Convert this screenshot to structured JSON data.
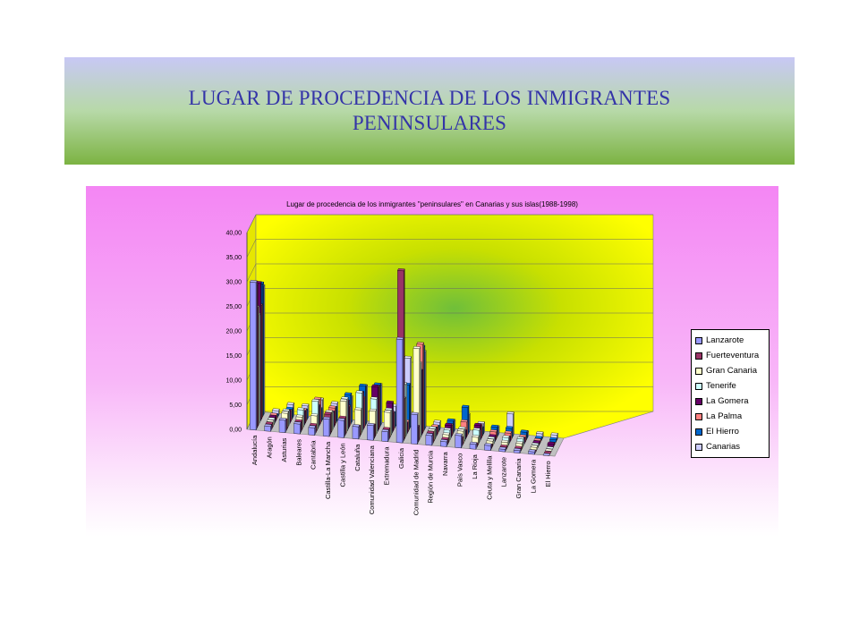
{
  "slide": {
    "title_line1": "LUGAR DE PROCEDENCIA DE LOS INMIGRANTES",
    "title_line2": "PENINSULARES"
  },
  "colors": {
    "series": [
      "#9999ff",
      "#993366",
      "#ffffcc",
      "#ccffff",
      "#660066",
      "#ff8080",
      "#0066cc",
      "#ccccff"
    ],
    "back_wall": "#ffff00",
    "back_wall_center": "#6fbf3a"
  },
  "chart_data": {
    "type": "bar",
    "variant": "3d-clustered",
    "title": "Lugar de procedencia de los inmigrantes \"peninsulares\" en Canarias y sus islas(1988-1998)",
    "y_ticks": [
      "0,00",
      "5,00",
      "10,00",
      "15,00",
      "20,00",
      "25,00",
      "30,00",
      "35,00",
      "40,00"
    ],
    "ylim": [
      0,
      40
    ],
    "legend_position": "right",
    "grid": true,
    "categories": [
      "Andalucía",
      "Aragón",
      "Asturias",
      "Baleares",
      "Cantabria",
      "Castilla-La Mancha",
      "Castilla y León",
      "Cataluña",
      "Comunidad Valenciana",
      "Extremadura",
      "Galicia",
      "Comunidad de Madrid",
      "Región de Murcia",
      "Navarra",
      "País Vasco",
      "La Rioja",
      "Ceuta y Melilla",
      "Lanzarote",
      "Gran Canaria",
      "La Gomera",
      "El Hierro"
    ],
    "series": [
      {
        "name": "Lanzarote",
        "values": [
          30.0,
          1.0,
          2.5,
          2.0,
          1.5,
          3.5,
          3.5,
          2.5,
          3.0,
          2.0,
          21.0,
          6.0,
          2.0,
          1.0,
          2.5,
          1.0,
          1.0,
          0.5,
          0.5,
          0.5,
          0.0
        ]
      },
      {
        "name": "Fuerteventura",
        "values": [
          29.0,
          1.0,
          2.0,
          2.0,
          1.5,
          4.0,
          3.5,
          2.0,
          2.5,
          2.0,
          34.5,
          3.0,
          2.0,
          1.0,
          1.5,
          0.5,
          0.5,
          0.5,
          0.5,
          0.0,
          0.0
        ]
      },
      {
        "name": "Gran Canaria",
        "values": [
          24.0,
          1.0,
          3.0,
          2.5,
          3.0,
          4.0,
          6.5,
          5.0,
          5.0,
          5.0,
          8.0,
          18.5,
          2.0,
          1.5,
          2.5,
          1.5,
          1.0,
          1.0,
          1.0,
          0.5,
          0.0
        ]
      },
      {
        "name": "Tenerife",
        "values": [
          22.0,
          1.0,
          3.0,
          3.5,
          5.5,
          3.5,
          6.5,
          8.0,
          7.0,
          5.0,
          10.5,
          15.0,
          2.0,
          2.0,
          2.5,
          2.5,
          1.0,
          1.5,
          1.5,
          0.5,
          0.0
        ]
      },
      {
        "name": "La Gomera",
        "values": [
          28.0,
          1.0,
          2.5,
          2.5,
          4.0,
          3.0,
          5.5,
          7.5,
          9.0,
          6.0,
          2.0,
          13.0,
          1.5,
          2.5,
          1.5,
          3.0,
          1.0,
          1.0,
          1.0,
          0.5,
          0.5
        ]
      },
      {
        "name": "La Palma",
        "values": [
          23.0,
          1.0,
          2.0,
          2.5,
          5.0,
          3.5,
          4.0,
          6.0,
          8.5,
          3.5,
          2.0,
          18.0,
          1.5,
          2.0,
          3.0,
          2.5,
          1.5,
          1.5,
          1.0,
          0.5,
          0.0
        ]
      },
      {
        "name": "El Hierro",
        "values": [
          27.0,
          0.5,
          2.0,
          2.0,
          2.5,
          3.0,
          6.0,
          8.0,
          8.5,
          3.0,
          9.0,
          17.0,
          1.0,
          2.5,
          5.5,
          1.5,
          2.0,
          2.0,
          1.5,
          0.5,
          0.5
        ]
      },
      {
        "name": "Canarias",
        "values": [
          26.0,
          1.0,
          2.5,
          2.5,
          4.0,
          3.5,
          5.0,
          7.5,
          8.0,
          4.0,
          14.0,
          15.5,
          1.5,
          2.0,
          3.5,
          2.0,
          1.5,
          4.5,
          1.0,
          1.0,
          1.0
        ]
      }
    ]
  }
}
